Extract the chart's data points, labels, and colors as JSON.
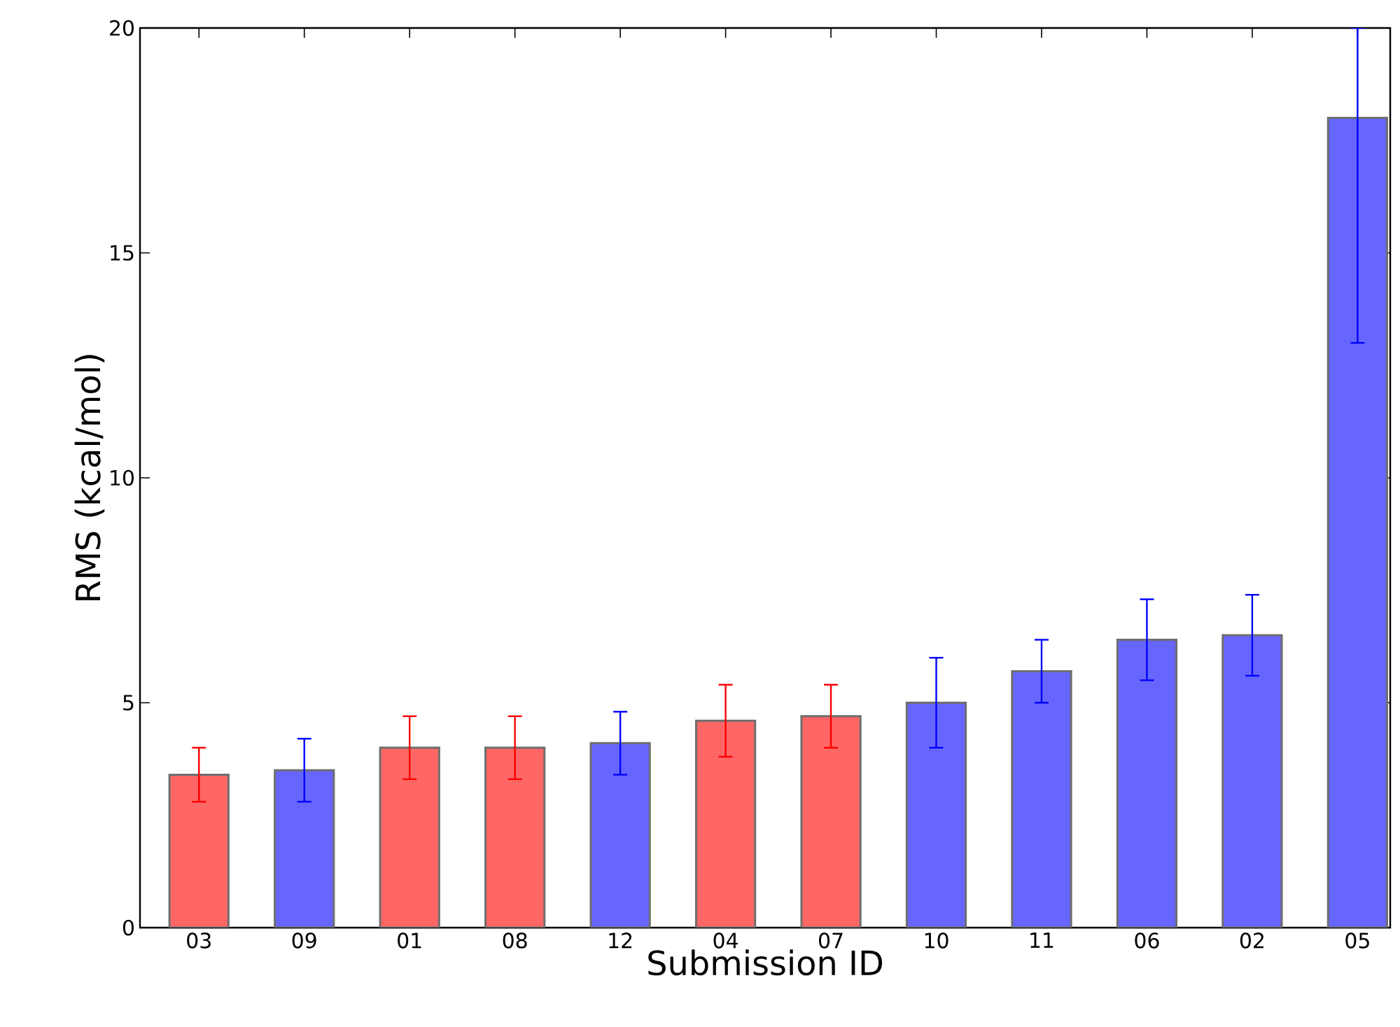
{
  "chart_data": {
    "type": "bar",
    "xlabel": "Submission ID",
    "ylabel": "RMS (kcal/mol)",
    "categories": [
      "03",
      "09",
      "01",
      "08",
      "12",
      "04",
      "07",
      "10",
      "11",
      "06",
      "02",
      "05"
    ],
    "values": [
      3.4,
      3.5,
      4.0,
      4.0,
      4.1,
      4.6,
      4.7,
      5.0,
      5.7,
      6.4,
      6.5,
      18.0
    ],
    "colors": [
      "#ff6666",
      "#6666ff",
      "#ff6666",
      "#ff6666",
      "#6666ff",
      "#ff6666",
      "#ff6666",
      "#6666ff",
      "#6666ff",
      "#6666ff",
      "#6666ff",
      "#6666ff"
    ],
    "errors": [
      [
        2.8,
        4.0
      ],
      [
        2.8,
        4.2
      ],
      [
        3.3,
        4.7
      ],
      [
        3.3,
        4.7
      ],
      [
        3.4,
        4.8
      ],
      [
        3.8,
        5.4
      ],
      [
        4.0,
        5.4
      ],
      [
        4.0,
        6.0
      ],
      [
        5.0,
        6.4
      ],
      [
        5.5,
        7.3
      ],
      [
        5.6,
        7.4
      ],
      [
        13.0,
        20
      ]
    ],
    "ylim": [
      0,
      20
    ],
    "yticks": [
      0,
      5,
      10,
      15,
      20
    ],
    "grid": false
  }
}
